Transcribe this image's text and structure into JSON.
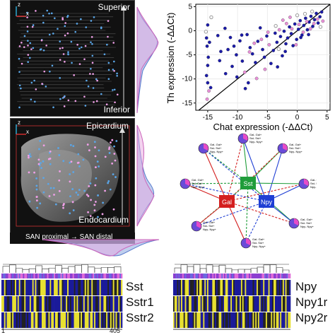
{
  "panel_a": {
    "top_label": "Superior",
    "bottom_label": "Inferior",
    "axis_z": "z",
    "axis_x": "x"
  },
  "panel_b": {
    "top_label": "Epicardium",
    "bottom_label": "Endocardium",
    "axis_z": "z",
    "axis_x": "x",
    "x_axis_label": "SAN proximal → SAN distal"
  },
  "scatter": {
    "chart_data": {
      "type": "scatter",
      "xlabel": "Chat expression (-ΔΔCt)",
      "ylabel": "Th expression (-ΔΔCt)",
      "xlim": [
        -17,
        5.5
      ],
      "ylim": [
        -16.5,
        5.5
      ],
      "xticks": [
        -15,
        -10,
        -5,
        0,
        5
      ],
      "yticks": [
        -15,
        -10,
        -5,
        0,
        5
      ],
      "xtick_labels": [
        "-15",
        "-10",
        "-5",
        "0",
        "5"
      ],
      "ytick_labels": [
        "-15",
        "-10",
        "-5",
        "0",
        "5"
      ],
      "diagonal": true,
      "colors": {
        "blue": "#1a1aa8",
        "pink": "#e890d8",
        "gray": "#9a9a9a"
      },
      "points": [
        [
          -15.2,
          -1.5,
          "blue"
        ],
        [
          -15.1,
          -3.2,
          "blue"
        ],
        [
          -14.9,
          -5.5,
          "blue"
        ],
        [
          -15.0,
          -7.2,
          "blue"
        ],
        [
          -15.2,
          -9.3,
          "blue"
        ],
        [
          -15.0,
          -10.8,
          "blue"
        ],
        [
          -14.8,
          -12.5,
          "pink"
        ],
        [
          -15.1,
          -14.2,
          "pink"
        ],
        [
          -14.5,
          -11.8,
          "blue"
        ],
        [
          -15.3,
          -0.2,
          "gray"
        ],
        [
          -15.0,
          1.2,
          "blue"
        ],
        [
          -14.7,
          -2.4,
          "blue"
        ],
        [
          -14.4,
          2.8,
          "gray"
        ],
        [
          -12.1,
          0.5,
          "blue"
        ],
        [
          -11.2,
          -1.4,
          "blue"
        ],
        [
          -10.6,
          -3.2,
          "blue"
        ],
        [
          -10.2,
          -5.0,
          "blue"
        ],
        [
          -9.6,
          -2.1,
          "blue"
        ],
        [
          -9.2,
          -6.3,
          "blue"
        ],
        [
          -8.8,
          -8.6,
          "pink"
        ],
        [
          -8.4,
          -0.8,
          "blue"
        ],
        [
          -7.9,
          -3.5,
          "blue"
        ],
        [
          -7.5,
          -4.8,
          "blue"
        ],
        [
          -7.0,
          -6.6,
          "blue"
        ],
        [
          -6.6,
          -2.2,
          "blue"
        ],
        [
          -6.2,
          0.6,
          "blue"
        ],
        [
          -5.8,
          -3.9,
          "blue"
        ],
        [
          -5.5,
          -5.5,
          "blue"
        ],
        [
          -5.1,
          -1.1,
          "blue"
        ],
        [
          -4.7,
          -2.9,
          "pink"
        ],
        [
          -4.4,
          -6.8,
          "blue"
        ],
        [
          -4.0,
          -4.1,
          "blue"
        ],
        [
          -3.7,
          -0.5,
          "blue"
        ],
        [
          -3.4,
          -2.4,
          "blue"
        ],
        [
          -3.1,
          -3.8,
          "gray"
        ],
        [
          -2.8,
          -1.2,
          "blue"
        ],
        [
          -2.5,
          -5.2,
          "blue"
        ],
        [
          -2.2,
          -0.1,
          "blue"
        ],
        [
          -1.9,
          -2.7,
          "blue"
        ],
        [
          -1.6,
          -1.5,
          "blue"
        ],
        [
          -1.3,
          0.8,
          "blue"
        ],
        [
          -1.0,
          -0.6,
          "blue"
        ],
        [
          -0.7,
          -3.1,
          "blue"
        ],
        [
          -0.4,
          1.4,
          "blue"
        ],
        [
          -0.1,
          -1.8,
          "blue"
        ],
        [
          0.2,
          0.3,
          "blue"
        ],
        [
          0.5,
          2.1,
          "blue"
        ],
        [
          0.8,
          -0.9,
          "blue"
        ],
        [
          1.1,
          1.1,
          "blue"
        ],
        [
          1.4,
          2.6,
          "blue"
        ],
        [
          1.7,
          0.2,
          "blue"
        ],
        [
          2.0,
          1.8,
          "blue"
        ],
        [
          2.3,
          3.0,
          "blue"
        ],
        [
          2.6,
          0.9,
          "blue"
        ],
        [
          2.9,
          2.3,
          "blue"
        ],
        [
          3.2,
          3.6,
          "blue"
        ],
        [
          3.5,
          1.6,
          "blue"
        ],
        [
          3.8,
          2.9,
          "blue"
        ],
        [
          4.1,
          3.9,
          "blue"
        ],
        [
          -6.8,
          -9.9,
          "pink"
        ],
        [
          -10.9,
          -7.4,
          "blue"
        ],
        [
          -12.8,
          -4.3,
          "blue"
        ],
        [
          -9.3,
          -0.9,
          "blue"
        ],
        [
          -8.2,
          -10.8,
          "blue"
        ],
        [
          -5.4,
          -8.0,
          "pink"
        ],
        [
          -3.3,
          -7.5,
          "blue"
        ],
        [
          -12.0,
          -8.9,
          "blue"
        ],
        [
          -1.8,
          1.5,
          "pink"
        ],
        [
          -0.9,
          0.4,
          "pink"
        ],
        [
          0.3,
          1.3,
          "pink"
        ],
        [
          1.0,
          -0.3,
          "pink"
        ],
        [
          1.6,
          1.9,
          "pink"
        ],
        [
          2.2,
          0.4,
          "pink"
        ],
        [
          2.8,
          1.5,
          "pink"
        ],
        [
          3.4,
          2.4,
          "pink"
        ],
        [
          -2.4,
          2.2,
          "pink"
        ],
        [
          -1.2,
          2.8,
          "pink"
        ],
        [
          0.0,
          3.2,
          "gray"
        ],
        [
          1.3,
          3.5,
          "gray"
        ],
        [
          2.5,
          4.0,
          "gray"
        ],
        [
          -3.6,
          1.0,
          "gray"
        ],
        [
          3.9,
          0.8,
          "gray"
        ],
        [
          -4.9,
          -0.3,
          "pink"
        ],
        [
          -6.0,
          -1.8,
          "pink"
        ],
        [
          -7.2,
          -2.6,
          "pink"
        ],
        [
          -8.0,
          -4.4,
          "pink"
        ],
        [
          -3.0,
          0.2,
          "pink"
        ],
        [
          0.6,
          -1.4,
          "blue"
        ],
        [
          1.9,
          -0.8,
          "blue"
        ],
        [
          -0.2,
          -2.9,
          "pink"
        ],
        [
          4.3,
          2.0,
          "pink"
        ],
        [
          -2.0,
          -4.3,
          "blue"
        ],
        [
          -13.3,
          -1.0,
          "blue"
        ],
        [
          -13.0,
          -6.2,
          "blue"
        ],
        [
          -11.6,
          -3.9,
          "blue"
        ],
        [
          -10.1,
          -9.6,
          "blue"
        ],
        [
          -8.7,
          -12.0,
          "blue"
        ]
      ]
    }
  },
  "network": {
    "center_nodes": [
      "Sst",
      "Gal",
      "Npy"
    ],
    "outer_nodes": [
      {
        "label": "Gal- Gal+\nSst- Sst+\nNpy- Npy+"
      },
      {
        "label": "Gal- Gal+\nSst- Sst+\nNpy- Npy+"
      },
      {
        "label": "Gal- Gal+\nSst- Sst+\nNpy- Npy+"
      },
      {
        "label": "Gal- Gal+\nSst- Sst+\nNpy- Npy+"
      },
      {
        "label": "Gal- Gal+\nSst- Sst+\nNpy- Npy+"
      },
      {
        "label": "Gal- Gal+\nSst- Sst+\nNpy- Npy+"
      },
      {
        "label": "Gal- Gal+\nSst- Sst+\nNpy- Npy+"
      },
      {
        "label": "Gal- Gal+\nSst- Sst+\nNpy- Npy+"
      }
    ]
  },
  "heatmap_left": {
    "row_labels": [
      "Sst",
      "Sstr1",
      "Sstr2"
    ],
    "x_start": "1",
    "x_end": "405"
  },
  "heatmap_right": {
    "row_labels": [
      "Npy",
      "Npy1r",
      "Npy2r"
    ]
  }
}
